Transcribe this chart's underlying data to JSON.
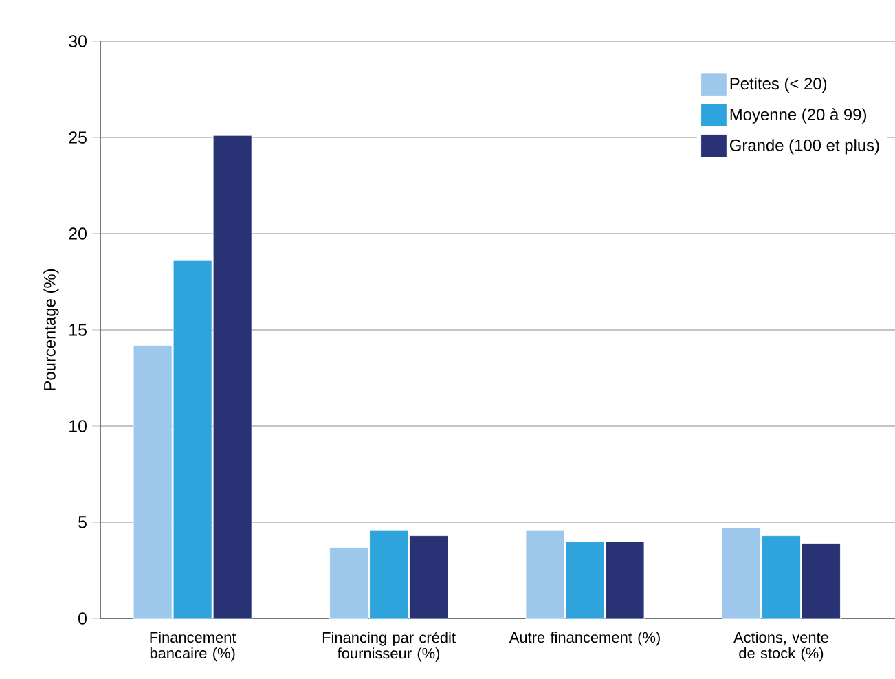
{
  "chart_data": {
    "type": "bar",
    "ylabel": "Pourcentage (%)",
    "categories": [
      "Financement bancaire (%)",
      "Financing par crédit fournisseur (%)",
      "Autre financement (%)",
      "Actions, vente de stock (%)"
    ],
    "series": [
      {
        "name": "Petites (< 20)",
        "color": "#9dc8ec",
        "values": [
          14.2,
          3.7,
          4.6,
          4.7
        ]
      },
      {
        "name": "Moyenne (20 à 99)",
        "color": "#2ea3dc",
        "values": [
          18.6,
          4.6,
          4.0,
          4.3
        ]
      },
      {
        "name": "Grande (100 et plus)",
        "color": "#283274",
        "values": [
          25.1,
          4.3,
          4.0,
          3.9
        ]
      }
    ],
    "ylim": [
      0,
      30
    ],
    "yticks": [
      0,
      5,
      10,
      15,
      20,
      25,
      30
    ],
    "grid": "y",
    "legend": "top right"
  }
}
